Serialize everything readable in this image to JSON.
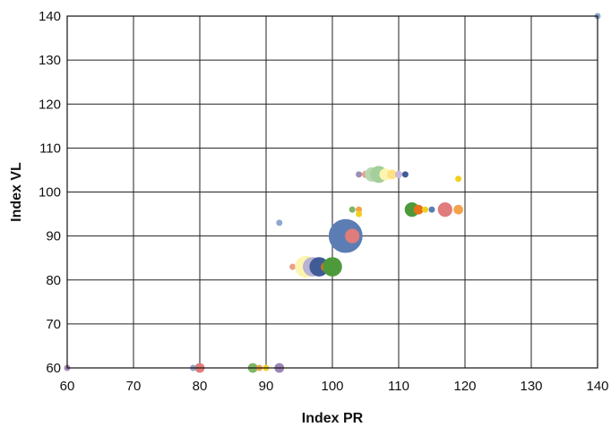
{
  "chart_data": {
    "type": "scatter",
    "variant": "bubble",
    "title": "",
    "xlabel": "Index PR",
    "ylabel": "Index VL",
    "xlim": [
      60,
      140
    ],
    "ylim": [
      60,
      140
    ],
    "xticks": [
      60,
      70,
      80,
      90,
      100,
      110,
      120,
      130,
      140
    ],
    "yticks": [
      60,
      70,
      80,
      90,
      100,
      110,
      120,
      130,
      140
    ],
    "grid": true,
    "legend": "none",
    "points": [
      {
        "x": 140,
        "y": 140,
        "size": 2,
        "color": "#8EA8CF"
      },
      {
        "x": 60,
        "y": 60,
        "size": 2,
        "color": "#A08DB5"
      },
      {
        "x": 79,
        "y": 60,
        "size": 2,
        "color": "#8EA8CF"
      },
      {
        "x": 80,
        "y": 60,
        "size": 4,
        "color": "#E07C7C"
      },
      {
        "x": 88,
        "y": 60,
        "size": 4,
        "color": "#7DB766"
      },
      {
        "x": 89,
        "y": 60,
        "size": 2,
        "color": "#F5A34A"
      },
      {
        "x": 90,
        "y": 60,
        "size": 2,
        "color": "#F0D020"
      },
      {
        "x": 92,
        "y": 60,
        "size": 4,
        "color": "#9B86B4"
      },
      {
        "x": 92,
        "y": 93,
        "size": 2,
        "color": "#8EA8CF"
      },
      {
        "x": 94,
        "y": 83,
        "size": 2,
        "color": "#E8A28A"
      },
      {
        "x": 95,
        "y": 83,
        "size": 3,
        "color": "#B8D8B0"
      },
      {
        "x": 96,
        "y": 83,
        "size": 9,
        "color": "#FBF5B0"
      },
      {
        "x": 97,
        "y": 83,
        "size": 8,
        "color": "#B9B2D4"
      },
      {
        "x": 98,
        "y": 83,
        "size": 8,
        "color": "#3F5C97"
      },
      {
        "x": 99,
        "y": 83,
        "size": 4,
        "color": "#E8701A"
      },
      {
        "x": 100,
        "y": 83,
        "size": 8,
        "color": "#4E9A3A"
      },
      {
        "x": 102,
        "y": 90,
        "size": 14,
        "color": "#5C7DB3"
      },
      {
        "x": 103,
        "y": 90,
        "size": 6,
        "color": "#E07C7C"
      },
      {
        "x": 103,
        "y": 96,
        "size": 2,
        "color": "#7DB766"
      },
      {
        "x": 104,
        "y": 96,
        "size": 2,
        "color": "#F5A34A"
      },
      {
        "x": 104,
        "y": 95,
        "size": 2,
        "color": "#F0D020"
      },
      {
        "x": 104,
        "y": 104,
        "size": 2,
        "color": "#A08DB5"
      },
      {
        "x": 105,
        "y": 104,
        "size": 3,
        "color": "#E8A28A"
      },
      {
        "x": 106,
        "y": 104,
        "size": 6,
        "color": "#B8D8B0"
      },
      {
        "x": 107,
        "y": 104,
        "size": 7,
        "color": "#A4CE9A"
      },
      {
        "x": 108,
        "y": 104,
        "size": 5,
        "color": "#FBF5B0"
      },
      {
        "x": 109,
        "y": 104,
        "size": 4,
        "color": "#FFE082"
      },
      {
        "x": 110,
        "y": 104,
        "size": 3,
        "color": "#C7B8DC"
      },
      {
        "x": 111,
        "y": 104,
        "size": 2,
        "color": "#3F5C97"
      },
      {
        "x": 112,
        "y": 96,
        "size": 6,
        "color": "#4E9A3A"
      },
      {
        "x": 113,
        "y": 96,
        "size": 4,
        "color": "#E8701A"
      },
      {
        "x": 114,
        "y": 96,
        "size": 2,
        "color": "#F0D020"
      },
      {
        "x": 115,
        "y": 96,
        "size": 2,
        "color": "#5C7DB3"
      },
      {
        "x": 117,
        "y": 96,
        "size": 6,
        "color": "#E07C7C"
      },
      {
        "x": 119,
        "y": 96,
        "size": 4,
        "color": "#F5A34A"
      },
      {
        "x": 119,
        "y": 103,
        "size": 2,
        "color": "#F0D020"
      }
    ]
  }
}
